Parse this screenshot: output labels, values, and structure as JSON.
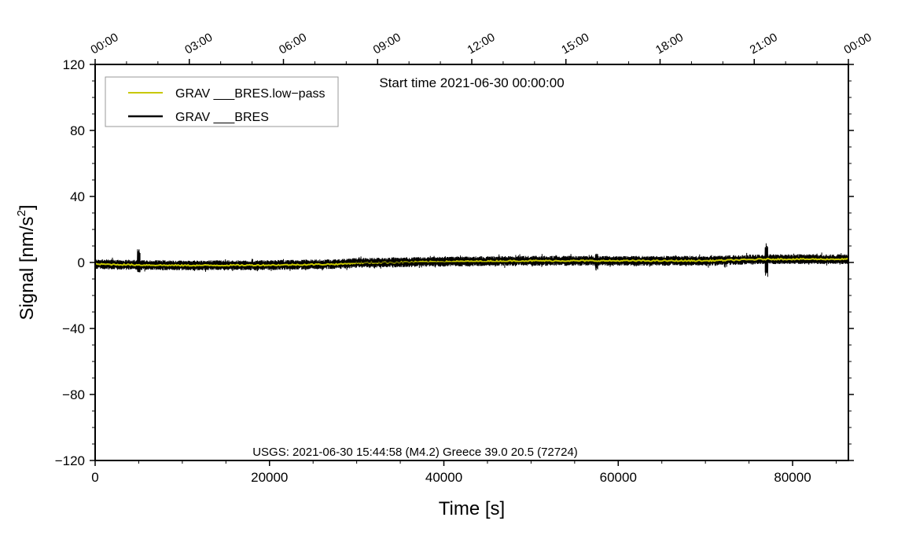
{
  "chart_data": {
    "type": "line",
    "title": "Start time 2021-06-30 00:00:00",
    "xlabel": "Time [s]",
    "ylabel": "Signal [nm/s",
    "ylabel_sup": "2",
    "ylabel_end": "]",
    "xlim": [
      0,
      86400
    ],
    "ylim": [
      -120,
      120
    ],
    "x_ticks": [
      0,
      20000,
      40000,
      60000,
      80000
    ],
    "x_tick_labels": [
      "0",
      "20000",
      "40000",
      "60000",
      "80000"
    ],
    "y_ticks": [
      120,
      80,
      40,
      0,
      -40,
      -80,
      -120
    ],
    "y_tick_labels": [
      "120",
      "80",
      "40",
      "0",
      "−40",
      "−80",
      "−120"
    ],
    "top_ticks_seconds": [
      0,
      10800,
      21600,
      32400,
      43200,
      54000,
      64800,
      75600,
      86400
    ],
    "top_tick_labels": [
      "00:00",
      "03:00",
      "06:00",
      "09:00",
      "12:00",
      "15:00",
      "18:00",
      "21:00",
      "00:00"
    ],
    "legend": {
      "placement": "top-left",
      "entries": [
        {
          "label": "GRAV ___BRES.low−pass",
          "color": "#c8c800"
        },
        {
          "label": "GRAV ___BRES",
          "color": "#000000"
        }
      ]
    },
    "annotation": "USGS: 2021-06-30 15:44:58 (M4.2) Greece 39.0 20.5 (72724)",
    "series": [
      {
        "name": "GRAV ___BRES.low-pass",
        "color": "#c8c800",
        "x": [
          0,
          5000,
          10000,
          20000,
          28000,
          30000,
          40000,
          50000,
          60000,
          70000,
          77000,
          86400
        ],
        "y": [
          -1,
          -1.5,
          -1.8,
          -1.6,
          -1,
          -0.3,
          0.5,
          1,
          1,
          1,
          2,
          2
        ]
      },
      {
        "name": "GRAV ___BRES",
        "color": "#000000",
        "noise_amplitude": 2.5,
        "spikes": [
          {
            "x": 5000,
            "max": 8,
            "min": -6
          },
          {
            "x": 57500,
            "max": 6,
            "min": -5
          },
          {
            "x": 77000,
            "max": 12,
            "min": -9
          }
        ]
      }
    ]
  }
}
